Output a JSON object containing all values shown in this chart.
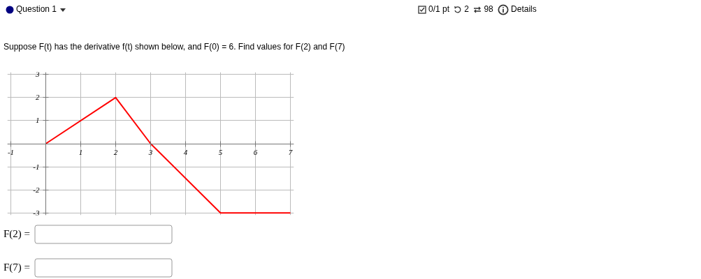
{
  "chart_data": {
    "type": "line",
    "title": "Suppose F(t) has the derivative f(t) shown below, and F(0) = 6. Find values for F(2) and F(7)",
    "annotations": [
      "Question 1",
      "0/1 pt",
      "2",
      "98",
      "Details",
      "F(2) =",
      "F(7) ="
    ],
    "x": [
      0,
      2,
      3,
      5,
      7
    ],
    "series": [
      {
        "color": "#ff0000",
        "values": [
          0,
          2,
          0,
          -3,
          -3
        ]
      }
    ],
    "xlim": [
      -1.1,
      7.1
    ],
    "ylim": [
      -3.1,
      3.1
    ],
    "xticks": [
      -1,
      {
        "value": 0,
        "label": null
      },
      1,
      2,
      3,
      4,
      5,
      6,
      7
    ],
    "yticks": [
      -3,
      -2,
      -1,
      {
        "value": 0,
        "label": null
      },
      1,
      2,
      3
    ],
    "grid": true,
    "marker": "none",
    "line_style": "solid"
  }
}
